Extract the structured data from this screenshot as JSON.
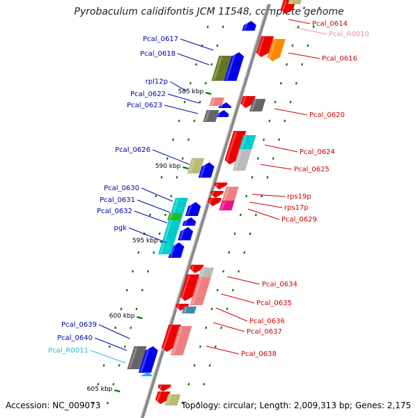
{
  "title": "Pyrobaculum calidifontis JCM 11548, complete genome",
  "footer": {
    "accession": "Accession: NC_009073",
    "topology": "Topology: circular; Length: 2,009,313 bp; Genes: 2,175"
  },
  "ticks": [
    {
      "label": "585 kbp",
      "kbp": 585
    },
    {
      "label": "590 kbp",
      "kbp": 590
    },
    {
      "label": "595 kbp",
      "kbp": 595
    },
    {
      "label": "600 kbp",
      "kbp": 600
    },
    {
      "label": "605 kbp",
      "kbp": 605
    }
  ],
  "gene_labels": [
    {
      "text": "Pcal_0617",
      "color": "#0000aa"
    },
    {
      "text": "Pcal_0618",
      "color": "#0000aa"
    },
    {
      "text": "rpl12p",
      "color": "#0000aa"
    },
    {
      "text": "Pcal_0622",
      "color": "#0000aa"
    },
    {
      "text": "Pcal_0623",
      "color": "#0000aa"
    },
    {
      "text": "Pcal_0626",
      "color": "#0000aa"
    },
    {
      "text": "Pcal_0630",
      "color": "#0000aa"
    },
    {
      "text": "Pcal_0631",
      "color": "#0000aa"
    },
    {
      "text": "Pcal_0632",
      "color": "#0000aa"
    },
    {
      "text": "pgk",
      "color": "#0000aa"
    },
    {
      "text": "Pcal_0639",
      "color": "#0000aa"
    },
    {
      "text": "Pcal_0640",
      "color": "#0000aa"
    },
    {
      "text": "Pcal_R0011",
      "color": "#22bbdd"
    },
    {
      "text": "Pcal_0614",
      "color": "#cc0000"
    },
    {
      "text": "Pcal_R0010",
      "color": "#ee88aa"
    },
    {
      "text": "Pcal_0616",
      "color": "#cc0000"
    },
    {
      "text": "Pcal_0620",
      "color": "#cc0000"
    },
    {
      "text": "Pcal_0624",
      "color": "#cc0000"
    },
    {
      "text": "Pcal_0625",
      "color": "#cc0000"
    },
    {
      "text": "rps19p",
      "color": "#cc0000"
    },
    {
      "text": "rps17p",
      "color": "#cc0000"
    },
    {
      "text": "Pcal_0629",
      "color": "#cc0000"
    },
    {
      "text": "Pcal_0634",
      "color": "#cc0000"
    },
    {
      "text": "Pcal_0635",
      "color": "#cc0000"
    },
    {
      "text": "Pcal_0636",
      "color": "#cc0000"
    },
    {
      "text": "Pcal_0637",
      "color": "#cc0000"
    },
    {
      "text": "Pcal_0638",
      "color": "#cc0000"
    }
  ],
  "colors": {
    "forward_strand": "#0000ee",
    "reverse_strand": "#ee0000",
    "reverse_pale": "#f08080",
    "backbone": "#888888",
    "tick": "#007700"
  }
}
